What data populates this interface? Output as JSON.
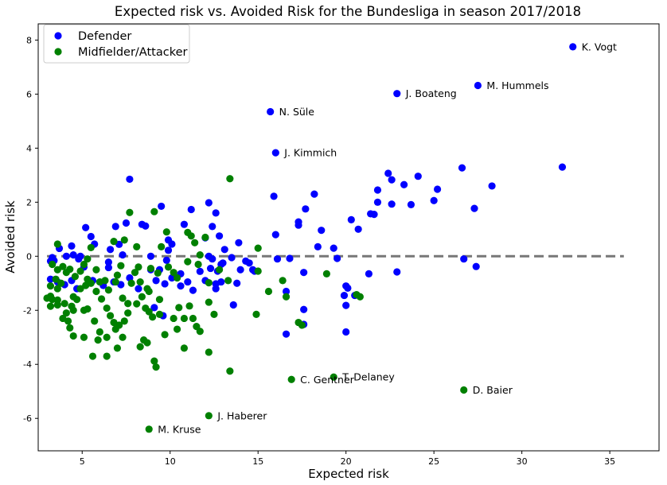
{
  "chart_data": {
    "type": "scatter",
    "title": "Expected risk vs. Avoided Risk for the Bundesliga in season 2017/2018",
    "xlabel": "Expected risk",
    "ylabel": "Avoided risk",
    "xlim": [
      2.5,
      37.8
    ],
    "ylim": [
      -7.2,
      8.6
    ],
    "xticks": [
      5,
      10,
      15,
      20,
      25,
      30,
      35
    ],
    "yticks": [
      -6,
      -4,
      -2,
      0,
      2,
      4,
      6,
      8
    ],
    "grid": false,
    "legend_position": "upper-left",
    "reference_line": {
      "y": 0,
      "x_from": 3,
      "x_to": 35.8,
      "style": "dashed",
      "color": "#777777"
    },
    "series": [
      {
        "name": "Defender",
        "color": "#0000ff",
        "points": [
          [
            32.9,
            7.75
          ],
          [
            27.5,
            6.32
          ],
          [
            22.9,
            6.02
          ],
          [
            15.7,
            5.35
          ],
          [
            16.0,
            3.83
          ],
          [
            32.3,
            3.3
          ],
          [
            28.3,
            2.6
          ],
          [
            26.6,
            3.27
          ],
          [
            25.2,
            2.48
          ],
          [
            24.1,
            2.96
          ],
          [
            22.4,
            3.07
          ],
          [
            23.3,
            2.65
          ],
          [
            22.6,
            2.83
          ],
          [
            21.8,
            2.45
          ],
          [
            21.6,
            1.55
          ],
          [
            21.4,
            1.57
          ],
          [
            20.7,
            1.0
          ],
          [
            20.3,
            1.35
          ],
          [
            19.3,
            0.3
          ],
          [
            19.5,
            -0.08
          ],
          [
            18.6,
            0.96
          ],
          [
            18.4,
            0.35
          ],
          [
            18.2,
            2.3
          ],
          [
            17.7,
            1.75
          ],
          [
            17.3,
            1.27
          ],
          [
            17.3,
            1.15
          ],
          [
            15.9,
            2.22
          ],
          [
            16.0,
            0.8
          ],
          [
            27.3,
            1.77
          ],
          [
            25.0,
            2.06
          ],
          [
            23.7,
            1.91
          ],
          [
            22.6,
            1.93
          ],
          [
            21.8,
            2.0
          ],
          [
            26.7,
            -0.1
          ],
          [
            27.4,
            -0.38
          ],
          [
            22.9,
            -0.58
          ],
          [
            21.3,
            -0.65
          ],
          [
            20.5,
            -1.45
          ],
          [
            20.0,
            -1.1
          ],
          [
            20.1,
            -1.18
          ],
          [
            19.9,
            -1.45
          ],
          [
            20.0,
            -1.82
          ],
          [
            20.0,
            -2.8
          ],
          [
            17.6,
            -1.97
          ],
          [
            17.6,
            -2.52
          ],
          [
            16.6,
            -2.88
          ],
          [
            16.6,
            -1.3
          ],
          [
            17.6,
            -0.6
          ],
          [
            16.8,
            -0.08
          ],
          [
            16.1,
            -0.1
          ],
          [
            14.7,
            -0.5
          ],
          [
            14.8,
            -0.55
          ],
          [
            14.5,
            -0.25
          ],
          [
            14.3,
            -0.18
          ],
          [
            13.9,
            0.5
          ],
          [
            13.5,
            -0.05
          ],
          [
            13.0,
            -0.25
          ],
          [
            12.7,
            -0.55
          ],
          [
            12.4,
            -0.1
          ],
          [
            12.3,
            -0.45
          ],
          [
            12.2,
            0.0
          ],
          [
            12.2,
            1.98
          ],
          [
            12.4,
            1.1
          ],
          [
            12.6,
            1.6
          ],
          [
            12.8,
            0.75
          ],
          [
            12.0,
            0.68
          ],
          [
            11.2,
            1.73
          ],
          [
            10.8,
            1.18
          ],
          [
            10.1,
            0.45
          ],
          [
            9.9,
            0.6
          ],
          [
            9.9,
            0.22
          ],
          [
            9.5,
            1.85
          ],
          [
            9.8,
            -0.15
          ],
          [
            9.4,
            -0.5
          ],
          [
            8.9,
            0.0
          ],
          [
            8.6,
            1.12
          ],
          [
            8.4,
            1.18
          ],
          [
            7.7,
            2.85
          ],
          [
            7.5,
            1.23
          ],
          [
            7.3,
            0.05
          ],
          [
            7.1,
            0.44
          ],
          [
            6.9,
            1.1
          ],
          [
            6.6,
            0.25
          ],
          [
            6.5,
            -0.22
          ],
          [
            6.5,
            -0.42
          ],
          [
            5.7,
            0.45
          ],
          [
            5.5,
            0.73
          ],
          [
            5.2,
            1.06
          ],
          [
            4.9,
            0.0
          ],
          [
            4.8,
            -0.1
          ],
          [
            4.5,
            0.05
          ],
          [
            4.4,
            0.38
          ],
          [
            4.1,
            0.0
          ],
          [
            3.7,
            0.29
          ],
          [
            3.4,
            -0.16
          ],
          [
            3.3,
            -0.05
          ],
          [
            3.2,
            -0.18
          ],
          [
            3.2,
            -0.85
          ],
          [
            3.6,
            -0.95
          ],
          [
            4.0,
            -1.05
          ],
          [
            4.4,
            -0.9
          ],
          [
            4.7,
            -1.2
          ],
          [
            5.1,
            -0.4
          ],
          [
            5.6,
            -0.9
          ],
          [
            6.2,
            -1.08
          ],
          [
            6.8,
            -0.95
          ],
          [
            7.2,
            -1.05
          ],
          [
            7.7,
            -0.8
          ],
          [
            8.2,
            -1.2
          ],
          [
            8.9,
            -0.5
          ],
          [
            9.1,
            -1.9
          ],
          [
            9.6,
            -2.2
          ],
          [
            9.7,
            -1.02
          ],
          [
            10.1,
            -0.8
          ],
          [
            10.6,
            -0.65
          ],
          [
            11.0,
            -0.95
          ],
          [
            11.3,
            -1.26
          ],
          [
            11.7,
            -0.56
          ],
          [
            12.0,
            -0.9
          ],
          [
            12.6,
            -1.2
          ],
          [
            12.6,
            -1.02
          ],
          [
            12.9,
            -0.95
          ],
          [
            13.6,
            -1.8
          ],
          [
            13.8,
            -1.0
          ],
          [
            14.0,
            -0.5
          ],
          [
            12.9,
            -0.3
          ],
          [
            13.1,
            0.25
          ],
          [
            10.6,
            -1.1
          ],
          [
            9.2,
            -0.9
          ]
        ]
      },
      {
        "name": "Midfielder/Attacker",
        "color": "#008000",
        "points": [
          [
            26.7,
            -4.95
          ],
          [
            19.3,
            -4.47
          ],
          [
            16.9,
            -4.56
          ],
          [
            12.2,
            -5.9
          ],
          [
            8.8,
            -6.4
          ],
          [
            13.4,
            -4.25
          ],
          [
            9.2,
            -4.1
          ],
          [
            9.1,
            -3.88
          ],
          [
            8.7,
            -3.2
          ],
          [
            8.5,
            -3.1
          ],
          [
            8.3,
            -3.35
          ],
          [
            7.3,
            -3.0
          ],
          [
            6.9,
            -2.7
          ],
          [
            6.4,
            -3.7
          ],
          [
            5.6,
            -3.7
          ],
          [
            5.9,
            -3.1
          ],
          [
            5.1,
            -3.0
          ],
          [
            4.5,
            -2.95
          ],
          [
            4.3,
            -2.65
          ],
          [
            4.2,
            -2.4
          ],
          [
            4.5,
            -2.0
          ],
          [
            4.0,
            -1.75
          ],
          [
            3.6,
            -1.62
          ],
          [
            3.3,
            -1.6
          ],
          [
            3.2,
            -1.48
          ],
          [
            3.2,
            -1.85
          ],
          [
            3.6,
            -1.8
          ],
          [
            3.0,
            -1.55
          ],
          [
            3.2,
            -1.1
          ],
          [
            3.6,
            -1.2
          ],
          [
            3.8,
            -1.0
          ],
          [
            3.5,
            -0.85
          ],
          [
            3.6,
            -0.5
          ],
          [
            3.3,
            -0.3
          ],
          [
            3.6,
            0.45
          ],
          [
            3.9,
            -0.38
          ],
          [
            4.1,
            -0.6
          ],
          [
            4.3,
            -0.48
          ],
          [
            4.6,
            -0.75
          ],
          [
            5.1,
            -0.3
          ],
          [
            5.3,
            -0.1
          ],
          [
            5.5,
            0.32
          ],
          [
            5.8,
            -0.5
          ],
          [
            6.0,
            -0.95
          ],
          [
            6.3,
            -0.9
          ],
          [
            6.5,
            -1.25
          ],
          [
            6.9,
            -0.95
          ],
          [
            7.0,
            -0.7
          ],
          [
            7.2,
            -0.35
          ],
          [
            7.4,
            0.6
          ],
          [
            7.7,
            1.62
          ],
          [
            8.0,
            -0.6
          ],
          [
            8.3,
            -0.95
          ],
          [
            8.7,
            -1.2
          ],
          [
            8.9,
            -0.45
          ],
          [
            9.3,
            -0.62
          ],
          [
            9.5,
            0.35
          ],
          [
            9.8,
            0.9
          ],
          [
            10.2,
            -0.6
          ],
          [
            10.5,
            -1.9
          ],
          [
            10.8,
            -2.3
          ],
          [
            11.0,
            0.88
          ],
          [
            11.2,
            0.75
          ],
          [
            11.4,
            0.5
          ],
          [
            11.7,
            0.05
          ],
          [
            12.0,
            0.7
          ],
          [
            12.2,
            -0.98
          ],
          [
            12.2,
            -3.55
          ],
          [
            11.7,
            -2.78
          ],
          [
            11.5,
            -2.6
          ],
          [
            11.3,
            -2.3
          ],
          [
            11.1,
            -1.84
          ],
          [
            10.8,
            -3.4
          ],
          [
            10.4,
            -2.7
          ],
          [
            10.2,
            -2.3
          ],
          [
            9.7,
            -2.9
          ],
          [
            9.4,
            -2.15
          ],
          [
            9.0,
            -2.25
          ],
          [
            8.8,
            -2.05
          ],
          [
            8.6,
            -1.92
          ],
          [
            8.4,
            -1.5
          ],
          [
            8.1,
            -1.76
          ],
          [
            7.6,
            -1.75
          ],
          [
            7.4,
            -2.4
          ],
          [
            7.1,
            -2.55
          ],
          [
            6.8,
            -2.45
          ],
          [
            6.6,
            -2.2
          ],
          [
            6.4,
            -1.92
          ],
          [
            6.1,
            -1.58
          ],
          [
            5.8,
            -1.3
          ],
          [
            5.5,
            -1.0
          ],
          [
            5.2,
            -1.08
          ],
          [
            4.9,
            -1.2
          ],
          [
            4.7,
            -1.6
          ],
          [
            4.4,
            -1.85
          ],
          [
            4.1,
            -2.1
          ],
          [
            3.9,
            -2.3
          ],
          [
            4.5,
            -1.5
          ],
          [
            5.1,
            -2.0
          ],
          [
            5.3,
            -1.95
          ],
          [
            5.7,
            -2.4
          ],
          [
            6.0,
            -2.8
          ],
          [
            6.4,
            -3.0
          ],
          [
            7.0,
            -3.4
          ],
          [
            7.6,
            -2.1
          ],
          [
            7.3,
            -1.55
          ],
          [
            7.8,
            -1.0
          ],
          [
            8.2,
            -0.4
          ],
          [
            8.8,
            -1.3
          ],
          [
            9.4,
            -1.6
          ],
          [
            9.9,
            -0.4
          ],
          [
            10.4,
            -0.8
          ],
          [
            11.0,
            -0.2
          ],
          [
            11.6,
            -0.3
          ],
          [
            12.2,
            -1.7
          ],
          [
            12.5,
            -2.15
          ],
          [
            13.4,
            2.87
          ],
          [
            14.9,
            -2.15
          ],
          [
            15.0,
            -0.55
          ],
          [
            15.0,
            0.3
          ],
          [
            16.4,
            -0.9
          ],
          [
            16.6,
            -1.5
          ],
          [
            17.3,
            -2.45
          ],
          [
            17.5,
            -2.55
          ],
          [
            18.9,
            -0.65
          ],
          [
            20.8,
            -1.5
          ],
          [
            20.6,
            -1.42
          ],
          [
            15.6,
            -1.3
          ],
          [
            13.3,
            -0.9
          ],
          [
            12.8,
            -0.5
          ],
          [
            9.1,
            1.65
          ],
          [
            8.1,
            0.35
          ],
          [
            6.8,
            0.55
          ],
          [
            5.3,
            -0.85
          ],
          [
            4.9,
            -0.55
          ]
        ]
      }
    ],
    "annotations": [
      {
        "text": "K. Vogt",
        "x": 32.9,
        "y": 7.75
      },
      {
        "text": "M. Hummels",
        "x": 27.5,
        "y": 6.32
      },
      {
        "text": "J. Boateng",
        "x": 22.9,
        "y": 6.02
      },
      {
        "text": "N. Süle",
        "x": 15.7,
        "y": 5.35
      },
      {
        "text": "J. Kimmich",
        "x": 16.0,
        "y": 3.83
      },
      {
        "text": "T. Delaney",
        "x": 19.3,
        "y": -4.47
      },
      {
        "text": "C. Gentner",
        "x": 16.9,
        "y": -4.56
      },
      {
        "text": "D. Baier",
        "x": 26.7,
        "y": -4.95
      },
      {
        "text": "J. Haberer",
        "x": 12.2,
        "y": -5.9
      },
      {
        "text": "M. Kruse",
        "x": 8.8,
        "y": -6.4
      }
    ]
  }
}
